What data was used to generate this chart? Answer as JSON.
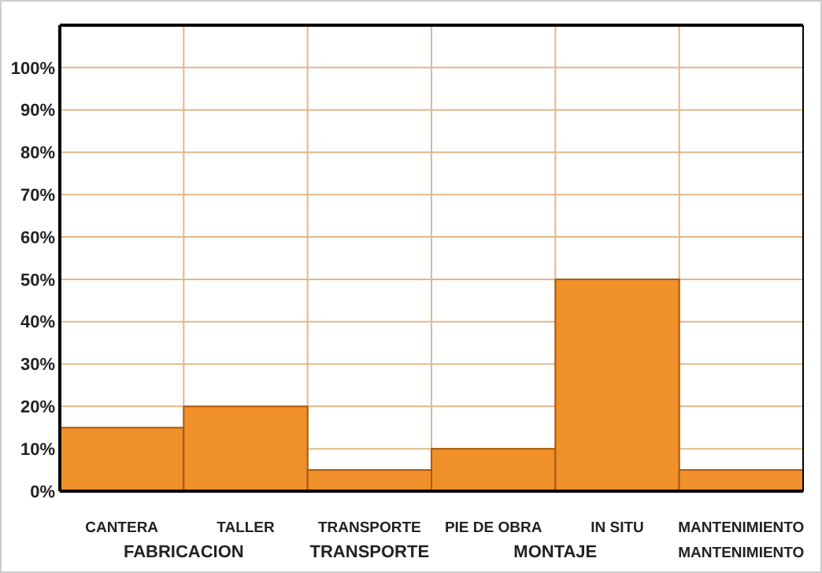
{
  "chart_data": {
    "type": "bar",
    "categories": [
      "CANTERA",
      "TALLER",
      "TRANSPORTE",
      "PIE DE OBRA",
      "IN SITU",
      "MANTENIMIENTO"
    ],
    "values": [
      15,
      20,
      5,
      10,
      50,
      5
    ],
    "color": "#f0902a",
    "ylim": [
      0,
      110
    ],
    "yticks": [
      {
        "value": 0,
        "label": "0%"
      },
      {
        "value": 10,
        "label": "10%"
      },
      {
        "value": 20,
        "label": "20%"
      },
      {
        "value": 30,
        "label": "30%"
      },
      {
        "value": 40,
        "label": "40%"
      },
      {
        "value": 50,
        "label": "50%"
      },
      {
        "value": 60,
        "label": "60%"
      },
      {
        "value": 70,
        "label": "70%"
      },
      {
        "value": 80,
        "label": "80%"
      },
      {
        "value": 90,
        "label": "90%"
      },
      {
        "value": 100,
        "label": "100%"
      }
    ],
    "grid": true,
    "annotations": [
      "FABRICACION",
      "TRANSPORTE",
      "MONTAJE",
      "MANTENIMIENTO"
    ]
  }
}
